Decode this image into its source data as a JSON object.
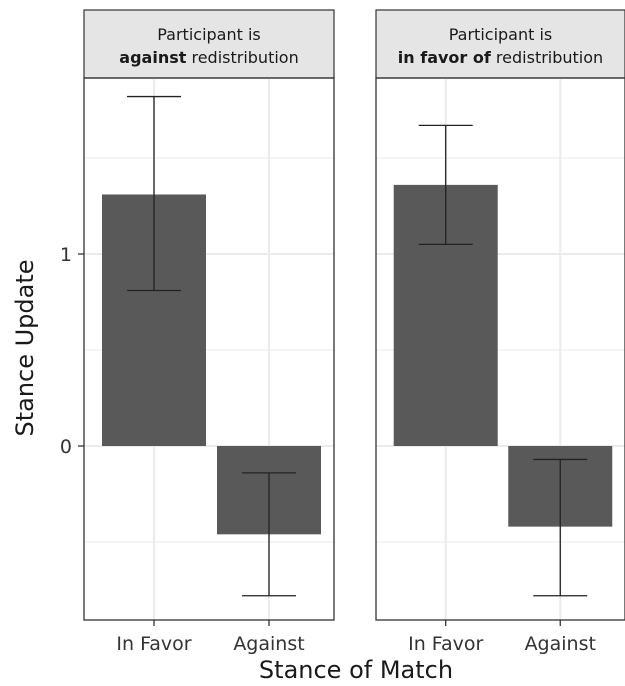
{
  "chart_data": {
    "type": "bar",
    "xlabel": "Stance of Match",
    "ylabel": "Stance Update",
    "yticks": [
      "0",
      "1"
    ],
    "ylim": [
      -0.92,
      1.9
    ],
    "grid": true,
    "panels": [
      {
        "title_bold": "against",
        "title_rest": " redistribution",
        "title_line1": "Participant is",
        "categories": [
          "In Favor",
          "Against"
        ],
        "values": [
          1.31,
          -0.46
        ],
        "error_low": [
          0.81,
          -0.78
        ],
        "error_high": [
          1.82,
          -0.14
        ]
      },
      {
        "title_bold": "in favor of",
        "title_rest": " redistribution",
        "title_line1": "Participant is",
        "categories": [
          "In Favor",
          "Against"
        ],
        "values": [
          1.36,
          -0.42
        ],
        "error_low": [
          1.05,
          -0.78
        ],
        "error_high": [
          1.67,
          -0.07
        ]
      }
    ],
    "colors": {
      "bar": "#595959",
      "strip_fill": "#e5e5e5",
      "grid": "#ebebeb",
      "error": "#222222"
    }
  }
}
